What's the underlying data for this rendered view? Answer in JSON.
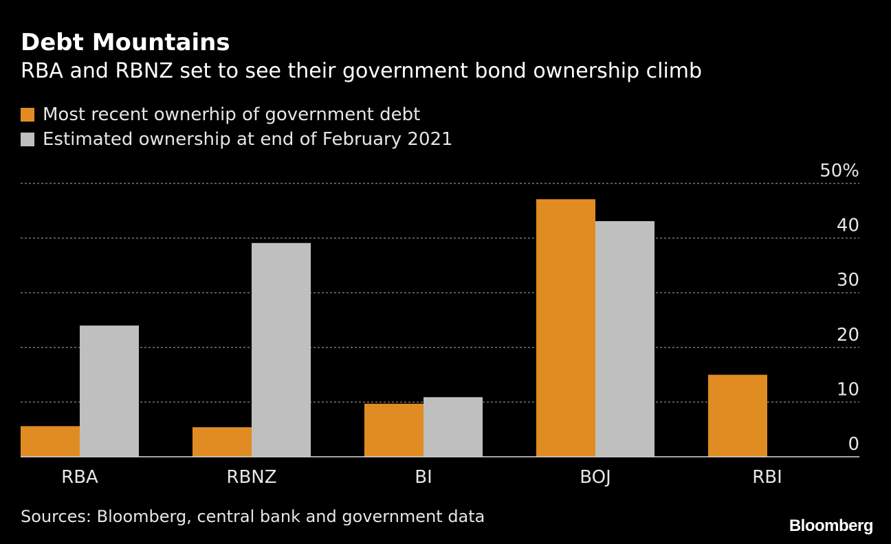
{
  "chart_data": {
    "type": "bar",
    "title": "Debt Mountains",
    "subtitle": "RBA and RBNZ set to see their government bond ownership climb",
    "categories": [
      "RBA",
      "RBNZ",
      "BI",
      "BOJ",
      "RBI"
    ],
    "series": [
      {
        "name": "Most recent ownerhip of government debt",
        "color": "#e08c22",
        "values": [
          5.6,
          5.4,
          9.7,
          47.1,
          15.0
        ]
      },
      {
        "name": "Estimated ownership at end of February 2021",
        "color": "#bfbfbf",
        "values": [
          24.0,
          39.1,
          10.9,
          43.1,
          null
        ]
      }
    ],
    "yticks": [
      0,
      10,
      20,
      30,
      40,
      50
    ],
    "ytick_labels": [
      "0",
      "10",
      "20",
      "30",
      "40",
      "50%"
    ],
    "ylim": [
      0,
      50
    ],
    "xlabel": "",
    "ylabel": "",
    "grid": true,
    "legend_position": "top-left",
    "source": "Sources: Bloomberg, central bank and government data",
    "brand": "Bloomberg"
  }
}
